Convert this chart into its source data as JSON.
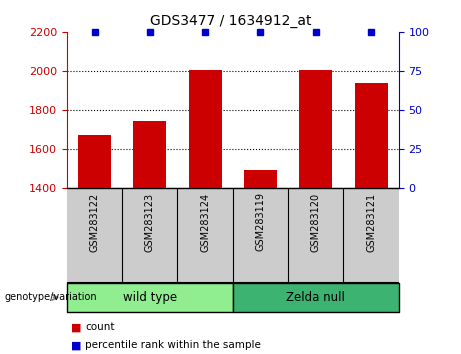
{
  "title": "GDS3477 / 1634912_at",
  "samples": [
    "GSM283122",
    "GSM283123",
    "GSM283124",
    "GSM283119",
    "GSM283120",
    "GSM283121"
  ],
  "counts": [
    1670,
    1740,
    2005,
    1490,
    2005,
    1935
  ],
  "percentile_ranks": [
    100,
    100,
    100,
    100,
    100,
    100
  ],
  "ylim_left": [
    1400,
    2200
  ],
  "yticks_left": [
    1400,
    1600,
    1800,
    2000,
    2200
  ],
  "ylim_right": [
    0,
    100
  ],
  "yticks_right": [
    0,
    25,
    50,
    75,
    100
  ],
  "bar_color": "#cc0000",
  "percentile_color": "#0000cc",
  "group_row_color": "#cccccc",
  "wild_type_color": "#90ee90",
  "zelda_null_color": "#3cb371",
  "label_genotype": "genotype/variation",
  "legend_count_label": "count",
  "legend_percentile_label": "percentile rank within the sample",
  "background_color": "#ffffff",
  "groups": [
    {
      "label": "wild type",
      "start": 0,
      "end": 2,
      "color": "#90ee90"
    },
    {
      "label": "Zelda null",
      "start": 3,
      "end": 5,
      "color": "#3cb371"
    }
  ]
}
